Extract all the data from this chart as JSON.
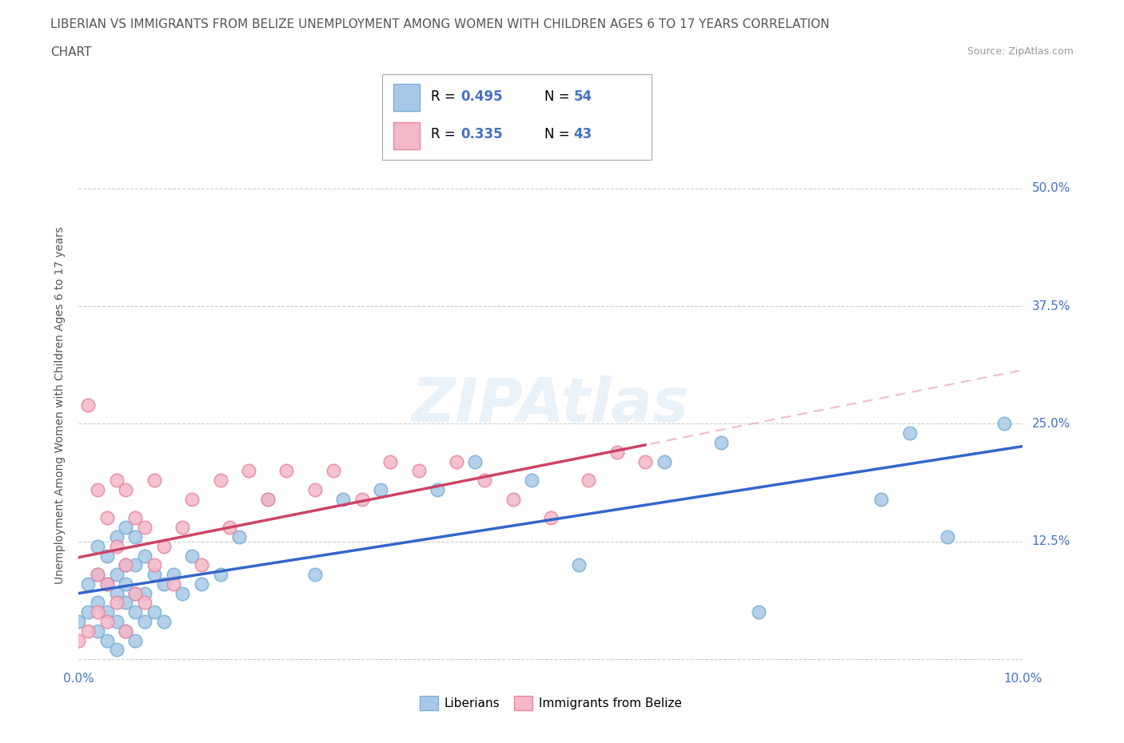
{
  "title_line1": "LIBERIAN VS IMMIGRANTS FROM BELIZE UNEMPLOYMENT AMONG WOMEN WITH CHILDREN AGES 6 TO 17 YEARS CORRELATION",
  "title_line2": "CHART",
  "source_text": "Source: ZipAtlas.com",
  "ylabel": "Unemployment Among Women with Children Ages 6 to 17 years",
  "xlim": [
    0.0,
    0.1
  ],
  "ylim": [
    -0.01,
    0.55
  ],
  "liberian_R": 0.495,
  "liberian_N": 54,
  "belize_R": 0.335,
  "belize_N": 43,
  "liberian_color": "#a8c8e8",
  "liberian_edge": "#7bafd4",
  "belize_color": "#f4b8c8",
  "belize_edge": "#e888a0",
  "liberian_line_color": "#3366cc",
  "belize_line_color": "#cc4466",
  "belize_dash_color": "#e8a0b0",
  "grid_color": "#cccccc",
  "background_color": "#ffffff",
  "liberian_x": [
    0.0,
    0.001,
    0.001,
    0.002,
    0.002,
    0.002,
    0.002,
    0.003,
    0.003,
    0.003,
    0.003,
    0.004,
    0.004,
    0.004,
    0.004,
    0.004,
    0.005,
    0.005,
    0.005,
    0.005,
    0.005,
    0.006,
    0.006,
    0.006,
    0.006,
    0.006,
    0.007,
    0.007,
    0.007,
    0.008,
    0.008,
    0.009,
    0.009,
    0.01,
    0.011,
    0.012,
    0.013,
    0.015,
    0.017,
    0.02,
    0.025,
    0.028,
    0.032,
    0.038,
    0.042,
    0.048,
    0.053,
    0.062,
    0.068,
    0.072,
    0.085,
    0.088,
    0.092,
    0.098
  ],
  "liberian_y": [
    0.04,
    0.05,
    0.08,
    0.03,
    0.06,
    0.09,
    0.12,
    0.02,
    0.05,
    0.08,
    0.11,
    0.01,
    0.04,
    0.07,
    0.09,
    0.13,
    0.03,
    0.06,
    0.08,
    0.1,
    0.14,
    0.02,
    0.05,
    0.07,
    0.1,
    0.13,
    0.04,
    0.07,
    0.11,
    0.05,
    0.09,
    0.04,
    0.08,
    0.09,
    0.07,
    0.11,
    0.08,
    0.09,
    0.13,
    0.17,
    0.09,
    0.17,
    0.18,
    0.18,
    0.21,
    0.19,
    0.1,
    0.21,
    0.23,
    0.05,
    0.17,
    0.24,
    0.13,
    0.25
  ],
  "belize_x": [
    0.0,
    0.001,
    0.001,
    0.002,
    0.002,
    0.002,
    0.003,
    0.003,
    0.003,
    0.004,
    0.004,
    0.004,
    0.005,
    0.005,
    0.005,
    0.006,
    0.006,
    0.007,
    0.007,
    0.008,
    0.008,
    0.009,
    0.01,
    0.011,
    0.012,
    0.013,
    0.015,
    0.016,
    0.018,
    0.02,
    0.022,
    0.025,
    0.027,
    0.03,
    0.033,
    0.036,
    0.04,
    0.043,
    0.046,
    0.05,
    0.054,
    0.057,
    0.06
  ],
  "belize_y": [
    0.02,
    0.03,
    0.27,
    0.05,
    0.09,
    0.18,
    0.04,
    0.08,
    0.15,
    0.06,
    0.12,
    0.19,
    0.03,
    0.1,
    0.18,
    0.07,
    0.15,
    0.06,
    0.14,
    0.1,
    0.19,
    0.12,
    0.08,
    0.14,
    0.17,
    0.1,
    0.19,
    0.14,
    0.2,
    0.17,
    0.2,
    0.18,
    0.2,
    0.17,
    0.21,
    0.2,
    0.21,
    0.19,
    0.17,
    0.15,
    0.19,
    0.22,
    0.21
  ]
}
